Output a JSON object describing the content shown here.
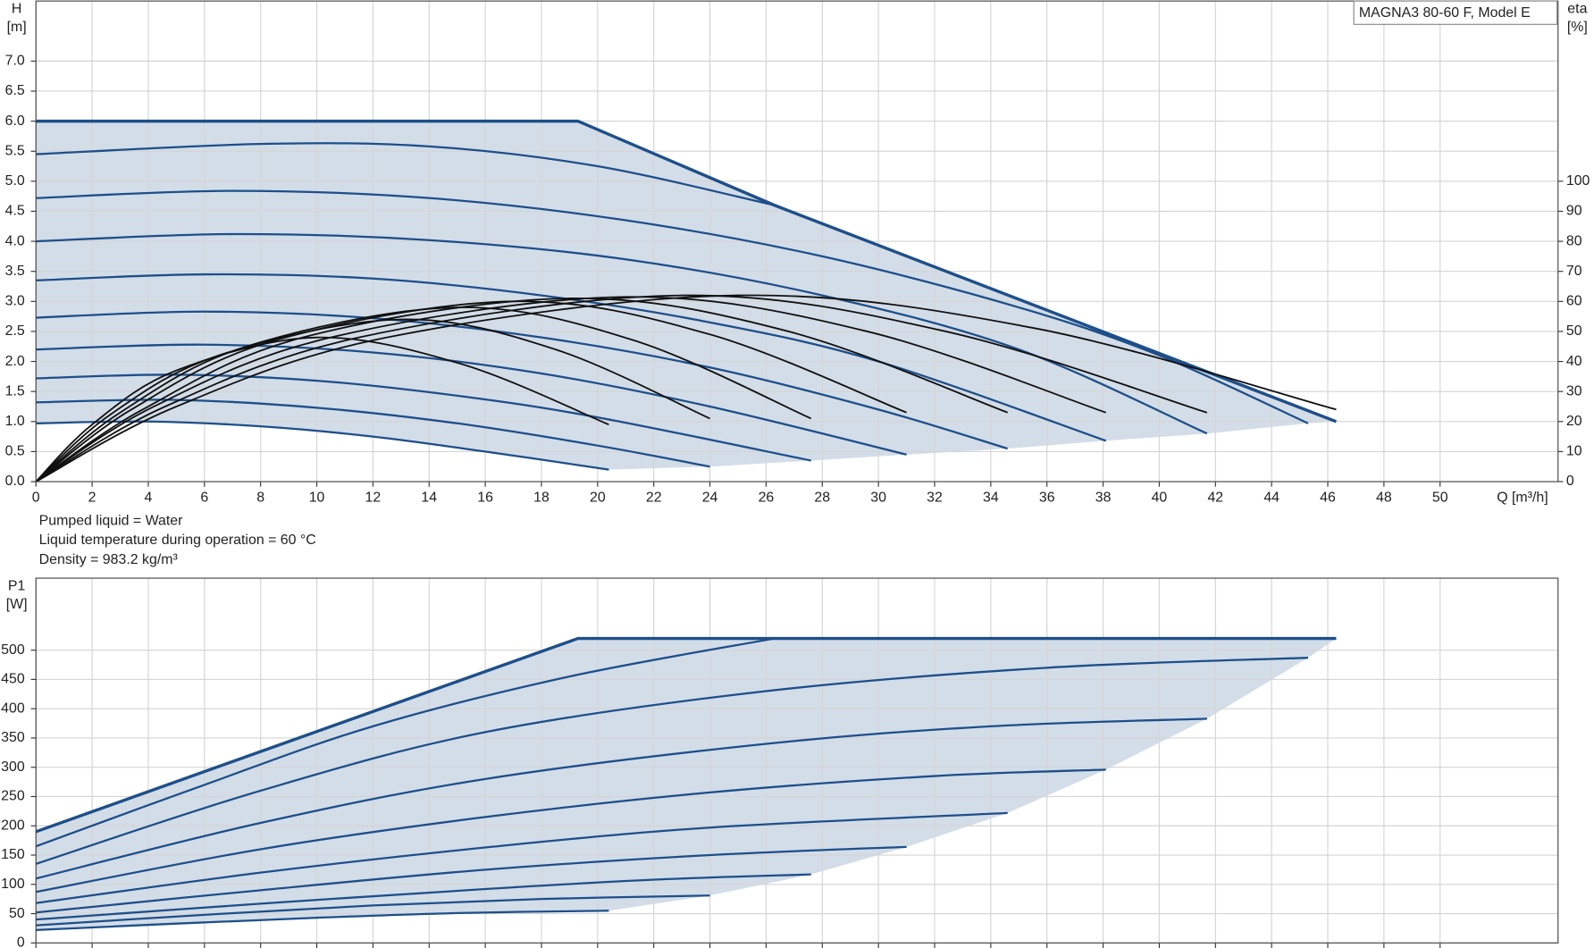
{
  "chart_data": [
    {
      "type": "line",
      "title": "MAGNA3 80-60 F, Model E",
      "y_label": [
        "H",
        "[m]"
      ],
      "y2_label": [
        "eta",
        "[%]"
      ],
      "x_label": "Q [m³/h]",
      "notes": [
        "Pumped liquid = Water",
        "Liquid temperature during operation = 60 °C",
        "Density = 983.2 kg/m³"
      ],
      "xlim": [
        0,
        54.2
      ],
      "ylim": [
        0,
        8
      ],
      "y2lim": [
        0,
        160
      ],
      "xticks": [
        0,
        2,
        4,
        6,
        8,
        10,
        12,
        14,
        16,
        18,
        20,
        22,
        24,
        26,
        28,
        30,
        32,
        34,
        36,
        38,
        40,
        42,
        44,
        46,
        48,
        50
      ],
      "yticks": [
        {
          "value": 0,
          "label": "0.0"
        },
        {
          "value": 0.5,
          "label": "0.5"
        },
        {
          "value": 1,
          "label": "1.0"
        },
        {
          "value": 1.5,
          "label": "1.5"
        },
        {
          "value": 2,
          "label": "2.0"
        },
        {
          "value": 2.5,
          "label": "2.5"
        },
        {
          "value": 3,
          "label": "3.0"
        },
        {
          "value": 3.5,
          "label": "3.5"
        },
        {
          "value": 4,
          "label": "4.0"
        },
        {
          "value": 4.5,
          "label": "4.5"
        },
        {
          "value": 5,
          "label": "5.0"
        },
        {
          "value": 5.5,
          "label": "5.5"
        },
        {
          "value": 6,
          "label": "6.0"
        },
        {
          "value": 6.5,
          "label": "6.5"
        },
        {
          "value": 7,
          "label": "7.0"
        }
      ],
      "y2ticks": [
        0,
        10,
        20,
        30,
        40,
        50,
        60,
        70,
        80,
        90,
        100
      ],
      "grid": true,
      "show_xtick_labels": true,
      "fill_color": "#d3dde8",
      "series": [
        {
          "color": "#1d4f8a",
          "smooth": false,
          "x": [
            0,
            19.3,
            26.3,
            46.3
          ],
          "values": [
            6,
            6,
            4.6,
            1.0
          ]
        },
        {
          "color": "#1d4f8a",
          "x": [
            0,
            8,
            14,
            20,
            26.3
          ],
          "values": [
            5.45,
            5.62,
            5.58,
            5.25,
            4.6
          ]
        },
        {
          "color": "#1d4f8a",
          "x": [
            0,
            7,
            14,
            21,
            28,
            35,
            40,
            45.3
          ],
          "values": [
            4.72,
            4.84,
            4.72,
            4.35,
            3.75,
            2.9,
            2.1,
            0.97
          ]
        },
        {
          "color": "#1d4f8a",
          "x": [
            0,
            7,
            14,
            21,
            28,
            35,
            41.7
          ],
          "values": [
            4.0,
            4.12,
            4.02,
            3.7,
            3.1,
            2.2,
            0.8
          ]
        },
        {
          "color": "#1d4f8a",
          "x": [
            0,
            6,
            12,
            18,
            24,
            30,
            38.1
          ],
          "values": [
            3.35,
            3.45,
            3.38,
            3.1,
            2.65,
            2.0,
            0.68
          ]
        },
        {
          "color": "#1d4f8a",
          "x": [
            0,
            6,
            12,
            18,
            24,
            30,
            34.6
          ],
          "values": [
            2.73,
            2.83,
            2.72,
            2.4,
            1.9,
            1.2,
            0.55
          ]
        },
        {
          "color": "#1d4f8a",
          "x": [
            0,
            6,
            12,
            18,
            24,
            31
          ],
          "values": [
            2.2,
            2.28,
            2.15,
            1.8,
            1.25,
            0.45
          ]
        },
        {
          "color": "#1d4f8a",
          "x": [
            0,
            5,
            10,
            15,
            20,
            27.6
          ],
          "values": [
            1.72,
            1.78,
            1.68,
            1.43,
            1.07,
            0.35
          ]
        },
        {
          "color": "#1d4f8a",
          "x": [
            0,
            5,
            10,
            15,
            20,
            24
          ],
          "values": [
            1.32,
            1.36,
            1.23,
            0.97,
            0.6,
            0.25
          ]
        },
        {
          "color": "#1d4f8a",
          "x": [
            0,
            4,
            8,
            12,
            16,
            20.4
          ],
          "values": [
            0.97,
            1.0,
            0.92,
            0.75,
            0.5,
            0.2
          ]
        },
        {
          "color": "#111111",
          "axis": "y2",
          "x": [
            0,
            2,
            5,
            10,
            15.2,
            20.4
          ],
          "values": [
            0,
            19,
            37,
            48,
            39,
            19
          ]
        },
        {
          "color": "#111111",
          "axis": "y2",
          "x": [
            0,
            2.6,
            6.5,
            13,
            18.5,
            24
          ],
          "values": [
            0,
            22,
            42,
            54,
            44,
            21
          ]
        },
        {
          "color": "#111111",
          "axis": "y2",
          "x": [
            0,
            3,
            7.5,
            15,
            21.3,
            27.6
          ],
          "values": [
            0,
            23,
            45,
            58,
            47,
            21
          ]
        },
        {
          "color": "#111111",
          "axis": "y2",
          "x": [
            0,
            3.4,
            8.5,
            17,
            24,
            31
          ],
          "values": [
            0,
            24,
            47,
            60,
            49,
            23
          ]
        },
        {
          "color": "#111111",
          "axis": "y2",
          "x": [
            0,
            3.8,
            9.5,
            19,
            26.8,
            34.6
          ],
          "values": [
            0,
            24,
            48,
            61,
            50,
            23
          ]
        },
        {
          "color": "#111111",
          "axis": "y2",
          "x": [
            0,
            4.2,
            10.5,
            21,
            29.6,
            38.1
          ],
          "values": [
            0,
            25,
            48,
            61.5,
            50,
            23
          ]
        },
        {
          "color": "#111111",
          "axis": "y2",
          "x": [
            0,
            4.6,
            11.5,
            23,
            32.4,
            41.7
          ],
          "values": [
            0,
            25,
            48,
            62,
            50,
            23
          ]
        },
        {
          "color": "#111111",
          "axis": "y2",
          "x": [
            0,
            5,
            12.5,
            25,
            35.6,
            46.3
          ],
          "values": [
            0,
            25,
            48,
            62,
            51,
            24
          ]
        }
      ]
    },
    {
      "type": "line",
      "y_label": [
        "P1",
        "[W]"
      ],
      "xlim": [
        0,
        54.2
      ],
      "ylim": [
        0,
        623
      ],
      "xticks": [
        0,
        2,
        4,
        6,
        8,
        10,
        12,
        14,
        16,
        18,
        20,
        22,
        24,
        26,
        28,
        30,
        32,
        34,
        36,
        38,
        40,
        42,
        44,
        46,
        48,
        50
      ],
      "yticks": [
        0,
        50,
        100,
        150,
        200,
        250,
        300,
        350,
        400,
        450,
        500
      ],
      "grid": true,
      "show_xtick_labels": false,
      "fill_color": "#d3dde8",
      "series": [
        {
          "color": "#1d4f8a",
          "smooth": false,
          "x": [
            0,
            19.3,
            26.3,
            46.3
          ],
          "values": [
            190,
            520,
            520,
            520
          ]
        },
        {
          "color": "#1d4f8a",
          "x": [
            0,
            6,
            12,
            19,
            26.3
          ],
          "values": [
            165,
            270,
            370,
            455,
            520
          ]
        },
        {
          "color": "#1d4f8a",
          "x": [
            0,
            8,
            16,
            26,
            36,
            45.3
          ],
          "values": [
            135,
            260,
            360,
            430,
            470,
            487
          ]
        },
        {
          "color": "#1d4f8a",
          "x": [
            0,
            8,
            16,
            26,
            34,
            41.7
          ],
          "values": [
            110,
            205,
            280,
            340,
            370,
            383
          ]
        },
        {
          "color": "#1d4f8a",
          "x": [
            0,
            8,
            16,
            24,
            32,
            38.1
          ],
          "values": [
            87,
            160,
            215,
            257,
            285,
            296
          ]
        },
        {
          "color": "#1d4f8a",
          "x": [
            0,
            8,
            16,
            24,
            34.6
          ],
          "values": [
            68,
            120,
            163,
            197,
            222
          ]
        },
        {
          "color": "#1d4f8a",
          "x": [
            0,
            8,
            16,
            24,
            31
          ],
          "values": [
            52,
            90,
            125,
            150,
            164
          ]
        },
        {
          "color": "#1d4f8a",
          "x": [
            0,
            8,
            16,
            22,
            27.6
          ],
          "values": [
            40,
            67,
            92,
            108,
            117
          ]
        },
        {
          "color": "#1d4f8a",
          "x": [
            0,
            6,
            12,
            18,
            24
          ],
          "values": [
            30,
            48,
            64,
            75,
            81
          ]
        },
        {
          "color": "#1d4f8a",
          "x": [
            0,
            5,
            10,
            15,
            20.4
          ],
          "values": [
            22,
            33,
            43,
            51,
            55
          ]
        }
      ]
    }
  ]
}
